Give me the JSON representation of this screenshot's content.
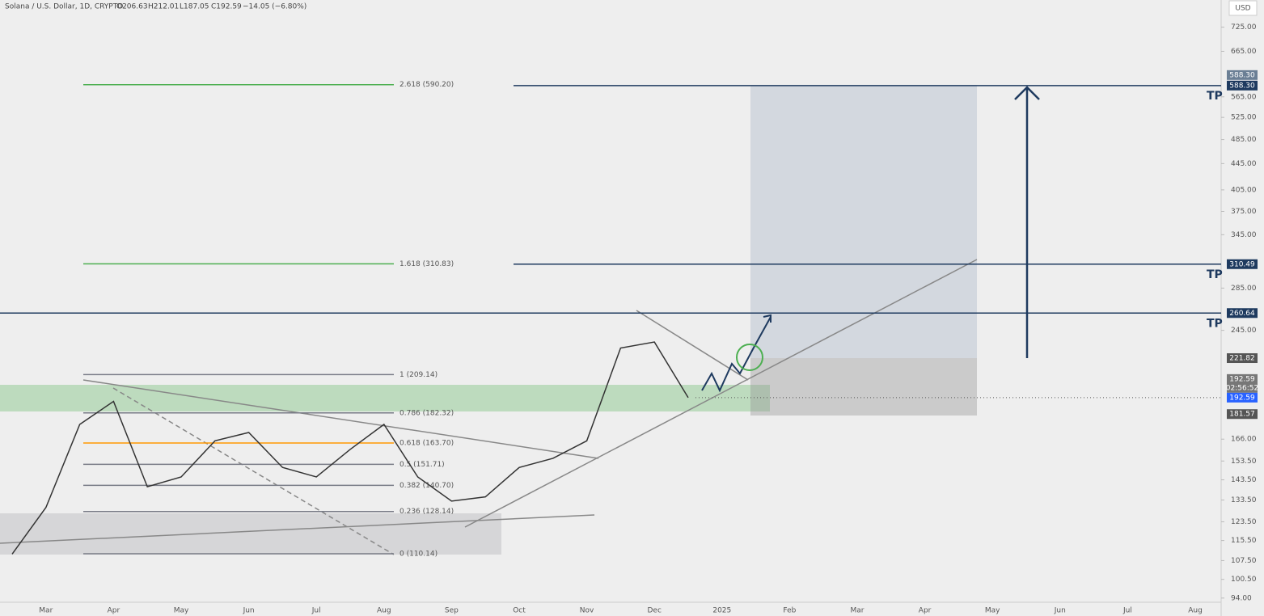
{
  "chart_data": {
    "type": "line",
    "title": "Solana / U.S. Dollar, 1D, CRYPTO",
    "ohlc": [
      "O206.63",
      "H212.01",
      "L187.05",
      "C192.59",
      "−14.05 (−6.80%)"
    ],
    "currency": "USD",
    "log_scale": true,
    "categories": [
      null,
      "Mar",
      null,
      "Apr",
      null,
      "May",
      null,
      "Jun",
      null,
      "Jul",
      null,
      "Aug",
      null,
      "Sep",
      null,
      "Oct",
      null,
      "Nov",
      null,
      "Dec",
      null,
      "2025",
      null,
      "Feb",
      null,
      "Mar",
      null,
      "Apr",
      null,
      "May",
      null,
      "Jun",
      null,
      "Jul",
      null,
      "Aug"
    ],
    "values": [
      110,
      130,
      175,
      190,
      140,
      145,
      165,
      170,
      150,
      145,
      160,
      175,
      145,
      133,
      135,
      150,
      155,
      165,
      230,
      235,
      192.59,
      null,
      null,
      null,
      null,
      null,
      null,
      null,
      null,
      null,
      null,
      null,
      null,
      null,
      null,
      null
    ],
    "color": "#333333",
    "ylim": [
      92.6,
      799
    ],
    "yticks": [
      {
        "value": 725,
        "label": "725.00"
      },
      {
        "value": 665,
        "label": "665.00"
      },
      {
        "value": 565,
        "label": "565.00"
      },
      {
        "value": 525,
        "label": "525.00"
      },
      {
        "value": 485,
        "label": "485.00"
      },
      {
        "value": 445,
        "label": "445.00"
      },
      {
        "value": 405,
        "label": "405.00"
      },
      {
        "value": 375,
        "label": "375.00"
      },
      {
        "value": 345,
        "label": "345.00"
      },
      {
        "value": 285,
        "label": "285.00"
      },
      {
        "value": 245,
        "label": "245.00"
      },
      {
        "value": 166,
        "label": "166.00"
      },
      {
        "value": 153.5,
        "label": "153.50"
      },
      {
        "value": 143.5,
        "label": "143.50"
      },
      {
        "value": 133.5,
        "label": "133.50"
      },
      {
        "value": 123.5,
        "label": "123.50"
      },
      {
        "value": 115.5,
        "label": "115.50"
      },
      {
        "value": 107.5,
        "label": "107.50"
      },
      {
        "value": 100.5,
        "label": "100.50"
      },
      {
        "value": 94,
        "label": "94.00"
      }
    ],
    "fib_levels": [
      {
        "value": 590.2,
        "label": "2.618 (590.20)",
        "color": "#4caf50"
      },
      {
        "value": 310.83,
        "label": "1.618 (310.83)",
        "color": "#4caf50"
      },
      {
        "value": 209.14,
        "label": "1 (209.14)",
        "color": "#787b86"
      },
      {
        "value": 182.32,
        "label": "0.786 (182.32)",
        "color": "#787b86"
      },
      {
        "value": 163.7,
        "label": "0.618 (163.70)",
        "color": "#ff9800"
      },
      {
        "value": 151.71,
        "label": "0.5 (151.71)",
        "color": "#787b86"
      },
      {
        "value": 140.7,
        "label": "0.382 (140.70)",
        "color": "#787b86"
      },
      {
        "value": 128.14,
        "label": "0.236 (128.14)",
        "color": "#787b86"
      },
      {
        "value": 110.14,
        "label": "0 (110.14)",
        "color": "#787b86"
      }
    ],
    "price_lines": [
      {
        "value": 588.3,
        "label": "588.30",
        "annotation": "TP",
        "color": "#1e3a5f"
      },
      {
        "value": 310.49,
        "label": "310.49",
        "annotation": "TP",
        "color": "#1e3a5f"
      },
      {
        "value": 260.64,
        "label": "260.64",
        "annotation": "TP",
        "color": "#1e3a5f"
      }
    ],
    "price_labels": [
      {
        "value": 221.82,
        "label": "221.82",
        "color": "#555555"
      },
      {
        "value": 181.57,
        "label": "181.57",
        "color": "#555555"
      }
    ],
    "current_price": {
      "value": 192.59,
      "label": "192.59",
      "countdown": "02:56:52",
      "color": "#2962ff"
    }
  }
}
